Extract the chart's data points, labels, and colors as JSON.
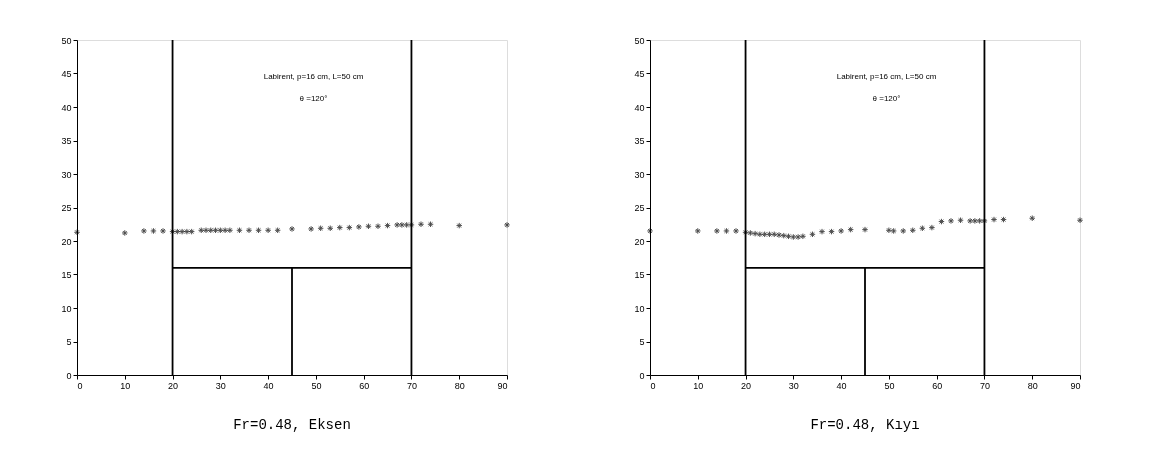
{
  "chart_data": [
    {
      "type": "scatter",
      "title": "Fr=0.48, Eksen",
      "annotations": [
        "Labirent, p=16 cm, L=50 cm",
        "θ =120°"
      ],
      "xlim": [
        0,
        90
      ],
      "xticks": [
        0,
        10,
        20,
        30,
        40,
        50,
        60,
        70,
        80,
        90
      ],
      "ylim": [
        0,
        50
      ],
      "yticks": [
        0,
        5,
        10,
        15,
        20,
        25,
        30,
        35,
        40,
        45,
        50
      ],
      "grid": false,
      "marker": "cross",
      "series": [
        {
          "color": "#000000",
          "x": [
            0,
            10,
            14,
            16,
            18,
            20,
            21,
            22,
            23,
            24,
            26,
            27,
            28,
            29,
            30,
            31,
            32,
            34,
            36,
            38,
            40,
            42,
            45,
            49,
            51,
            53,
            55,
            57,
            59,
            61,
            63,
            65,
            67,
            68,
            69,
            70,
            72,
            74,
            80,
            90
          ],
          "values": [
            21.3,
            21.2,
            21.5,
            21.5,
            21.5,
            21.4,
            21.4,
            21.4,
            21.4,
            21.4,
            21.6,
            21.6,
            21.6,
            21.6,
            21.6,
            21.6,
            21.6,
            21.6,
            21.6,
            21.6,
            21.6,
            21.6,
            21.8,
            21.8,
            21.9,
            21.9,
            22.0,
            22.0,
            22.1,
            22.2,
            22.2,
            22.3,
            22.4,
            22.4,
            22.4,
            22.4,
            22.5,
            22.5,
            22.3,
            22.4
          ]
        },
        {
          "type": "line",
          "color": "#000000",
          "marker": "none",
          "x": [
            20,
            20
          ],
          "values": [
            0,
            50
          ]
        },
        {
          "type": "line",
          "color": "#000000",
          "marker": "none",
          "x": [
            70,
            70
          ],
          "values": [
            0,
            50
          ]
        },
        {
          "type": "line",
          "color": "#000000",
          "marker": "none",
          "x": [
            20,
            70
          ],
          "values": [
            16,
            16
          ]
        },
        {
          "type": "line",
          "color": "#000000",
          "marker": "none",
          "x": [
            45,
            45
          ],
          "values": [
            0,
            16
          ]
        }
      ]
    },
    {
      "type": "scatter",
      "title": "Fr=0.48, Kıyı",
      "annotations": [
        "Labirent, p=16 cm, L=50 cm",
        "θ =120°"
      ],
      "xlim": [
        0,
        90
      ],
      "xticks": [
        0,
        10,
        20,
        30,
        40,
        50,
        60,
        70,
        80,
        90
      ],
      "ylim": [
        0,
        50
      ],
      "yticks": [
        0,
        5,
        10,
        15,
        20,
        25,
        30,
        35,
        40,
        45,
        50
      ],
      "grid": false,
      "marker": "cross",
      "series": [
        {
          "color": "#000000",
          "x": [
            0,
            10,
            14,
            16,
            18,
            20,
            21,
            22,
            23,
            24,
            25,
            26,
            27,
            28,
            29,
            30,
            31,
            32,
            34,
            36,
            38,
            40,
            42,
            45,
            50,
            51,
            53,
            55,
            57,
            59,
            61,
            63,
            65,
            67,
            68,
            69,
            70,
            72,
            74,
            80,
            90
          ],
          "values": [
            21.5,
            21.5,
            21.5,
            21.5,
            21.5,
            21.3,
            21.2,
            21.1,
            21.0,
            21.0,
            21.0,
            21.0,
            20.9,
            20.8,
            20.7,
            20.6,
            20.6,
            20.7,
            21.0,
            21.4,
            21.4,
            21.5,
            21.7,
            21.7,
            21.6,
            21.5,
            21.5,
            21.6,
            21.9,
            22.0,
            22.9,
            23.0,
            23.1,
            23.0,
            23.0,
            23.0,
            23.0,
            23.2,
            23.2,
            23.4,
            23.1
          ]
        },
        {
          "type": "line",
          "color": "#000000",
          "marker": "none",
          "x": [
            20,
            20
          ],
          "values": [
            0,
            50
          ]
        },
        {
          "type": "line",
          "color": "#000000",
          "marker": "none",
          "x": [
            70,
            70
          ],
          "values": [
            0,
            50
          ]
        },
        {
          "type": "line",
          "color": "#000000",
          "marker": "none",
          "x": [
            20,
            70
          ],
          "values": [
            16,
            16
          ]
        },
        {
          "type": "line",
          "color": "#000000",
          "marker": "none",
          "x": [
            45,
            45
          ],
          "values": [
            0,
            16
          ]
        }
      ]
    }
  ]
}
